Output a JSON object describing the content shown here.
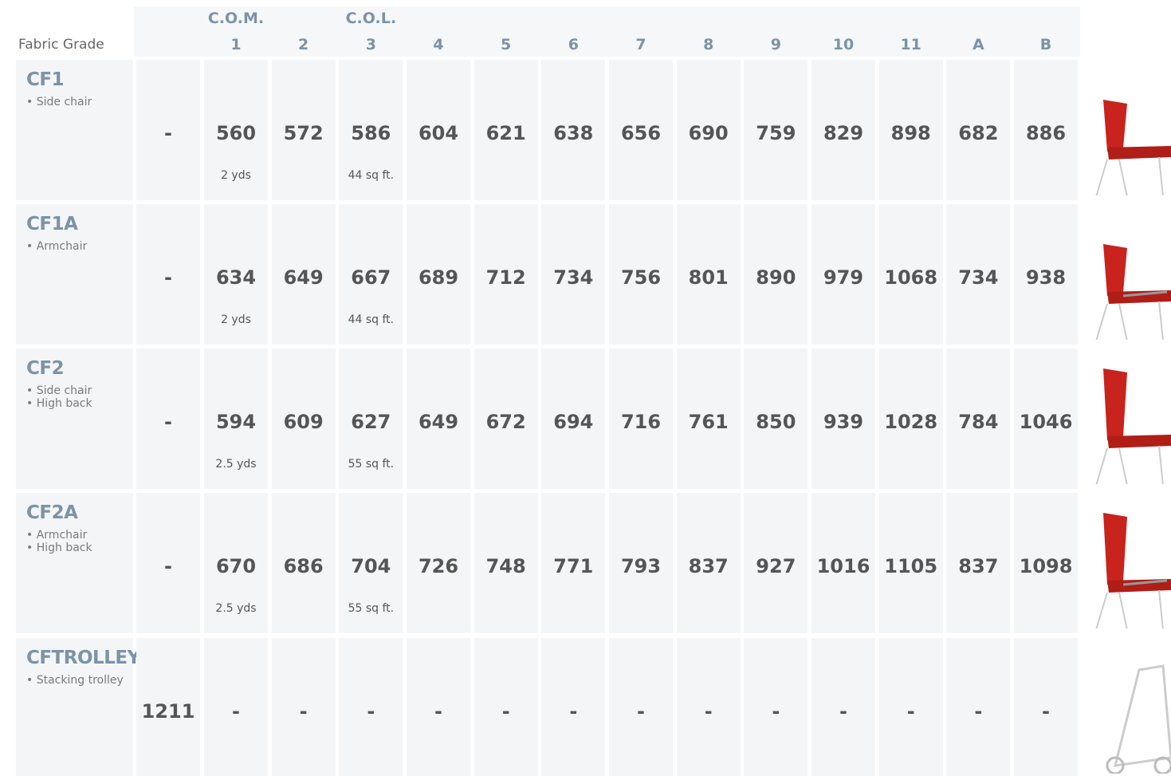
{
  "header": {
    "label": "Fabric Grade",
    "columns": [
      {
        "label": "1",
        "super": "C.O.M."
      },
      {
        "label": "2"
      },
      {
        "label": "3",
        "super": "C.O.L."
      },
      {
        "label": "4"
      },
      {
        "label": "5"
      },
      {
        "label": "6"
      },
      {
        "label": "7"
      },
      {
        "label": "8"
      },
      {
        "label": "9"
      },
      {
        "label": "10"
      },
      {
        "label": "11"
      },
      {
        "label": "A"
      },
      {
        "label": "B"
      }
    ]
  },
  "rows": [
    {
      "code": "CF1",
      "features": [
        "Side chair"
      ],
      "base": "-",
      "prices": [
        560,
        572,
        586,
        604,
        621,
        638,
        656,
        690,
        759,
        829,
        898,
        682,
        886
      ],
      "notes": [
        "2 yds",
        null,
        "44 sq ft.",
        null,
        null,
        null,
        null,
        null,
        null,
        null,
        null,
        null,
        null
      ]
    },
    {
      "code": "CF1A",
      "features": [
        "Armchair"
      ],
      "base": "-",
      "prices": [
        634,
        649,
        667,
        689,
        712,
        734,
        756,
        801,
        890,
        979,
        1068,
        734,
        938
      ],
      "notes": [
        "2 yds",
        null,
        "44 sq ft.",
        null,
        null,
        null,
        null,
        null,
        null,
        null,
        null,
        null,
        null
      ]
    },
    {
      "code": "CF2",
      "features": [
        "Side chair",
        "High back"
      ],
      "base": "-",
      "prices": [
        594,
        609,
        627,
        649,
        672,
        694,
        716,
        761,
        850,
        939,
        1028,
        784,
        1046
      ],
      "notes": [
        "2.5 yds",
        null,
        "55 sq ft.",
        null,
        null,
        null,
        null,
        null,
        null,
        null,
        null,
        null,
        null
      ]
    },
    {
      "code": "CF2A",
      "features": [
        "Armchair",
        "High back"
      ],
      "base": "-",
      "prices": [
        670,
        686,
        704,
        726,
        748,
        771,
        793,
        837,
        927,
        1016,
        1105,
        837,
        1098
      ],
      "notes": [
        "2.5 yds",
        null,
        "55 sq ft.",
        null,
        null,
        null,
        null,
        null,
        null,
        null,
        null,
        null,
        null
      ]
    },
    {
      "code": "CFTROLLEY",
      "features": [
        "Stacking trolley"
      ],
      "base": 1211,
      "prices": [
        "-",
        "-",
        "-",
        "-",
        "-",
        "-",
        "-",
        "-",
        "-",
        "-",
        "-",
        "-",
        "-"
      ],
      "notes": [
        null,
        null,
        null,
        null,
        null,
        null,
        null,
        null,
        null,
        null,
        null,
        null,
        null
      ]
    }
  ]
}
